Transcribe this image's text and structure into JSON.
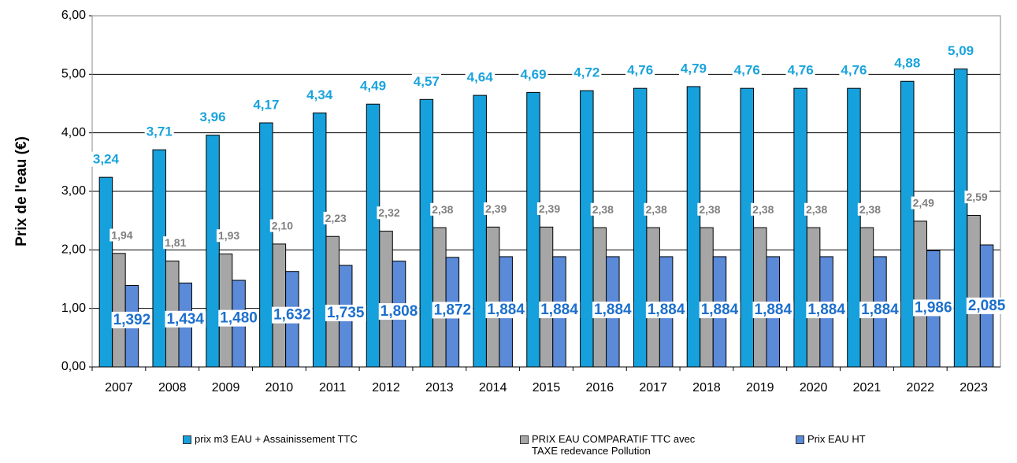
{
  "chart_data": {
    "type": "bar",
    "y_label": "Prix de l'eau (€)",
    "categories": [
      "2007",
      "2008",
      "2009",
      "2010",
      "2011",
      "2012",
      "2013",
      "2014",
      "2015",
      "2016",
      "2017",
      "2018",
      "2019",
      "2020",
      "2021",
      "2022",
      "2023"
    ],
    "series": [
      {
        "name": "prix m3 EAU + Assainissement TTC",
        "color": "#16a0dc",
        "label_color": "#1aa3dc",
        "values": [
          3.24,
          3.71,
          3.96,
          4.17,
          4.34,
          4.49,
          4.57,
          4.64,
          4.69,
          4.72,
          4.76,
          4.79,
          4.76,
          4.76,
          4.76,
          4.88,
          5.09
        ],
        "value_labels": [
          "3,24",
          "3,71",
          "3,96",
          "4,17",
          "4,34",
          "4,49",
          "4,57",
          "4,64",
          "4,69",
          "4,72",
          "4,76",
          "4,79",
          "4,76",
          "4,76",
          "4,76",
          "4,88",
          "5,09"
        ]
      },
      {
        "name": "PRIX EAU COMPARATIF TTC avec TAXE redevance Pollution",
        "color": "#a6a6a6",
        "label_color": "#808080",
        "values": [
          1.94,
          1.81,
          1.93,
          2.1,
          2.23,
          2.32,
          2.38,
          2.39,
          2.39,
          2.38,
          2.38,
          2.38,
          2.38,
          2.38,
          2.38,
          2.49,
          2.59
        ],
        "value_labels": [
          "1,94",
          "1,81",
          "1,93",
          "2,10",
          "2,23",
          "2,32",
          "2,38",
          "2,39",
          "2,39",
          "2,38",
          "2,38",
          "2,38",
          "2,38",
          "2,38",
          "2,38",
          "2,49",
          "2,59"
        ]
      },
      {
        "name": "Prix EAU HT",
        "color": "#5a8ad8",
        "label_color": "#1c6fcc",
        "values": [
          1.392,
          1.434,
          1.48,
          1.632,
          1.735,
          1.808,
          1.872,
          1.884,
          1.884,
          1.884,
          1.884,
          1.884,
          1.884,
          1.884,
          1.884,
          1.986,
          2.085
        ],
        "value_labels": [
          "1,392",
          "1,434",
          "1,480",
          "1,632",
          "1,735",
          "1,808",
          "1,872",
          "1,884",
          "1,884",
          "1,884",
          "1,884",
          "1,884",
          "1,884",
          "1,884",
          "1,884",
          "1,986",
          "2,085"
        ]
      }
    ],
    "ylim": [
      0,
      6
    ],
    "yticks": [
      {
        "value": 0,
        "label": "0,00"
      },
      {
        "value": 1,
        "label": "1,00"
      },
      {
        "value": 2,
        "label": "2,00"
      },
      {
        "value": 3,
        "label": "3,00"
      },
      {
        "value": 4,
        "label": "4,00"
      },
      {
        "value": 5,
        "label": "5,00"
      },
      {
        "value": 6,
        "label": "6,00"
      }
    ],
    "grid": true,
    "legend": "bottom"
  }
}
